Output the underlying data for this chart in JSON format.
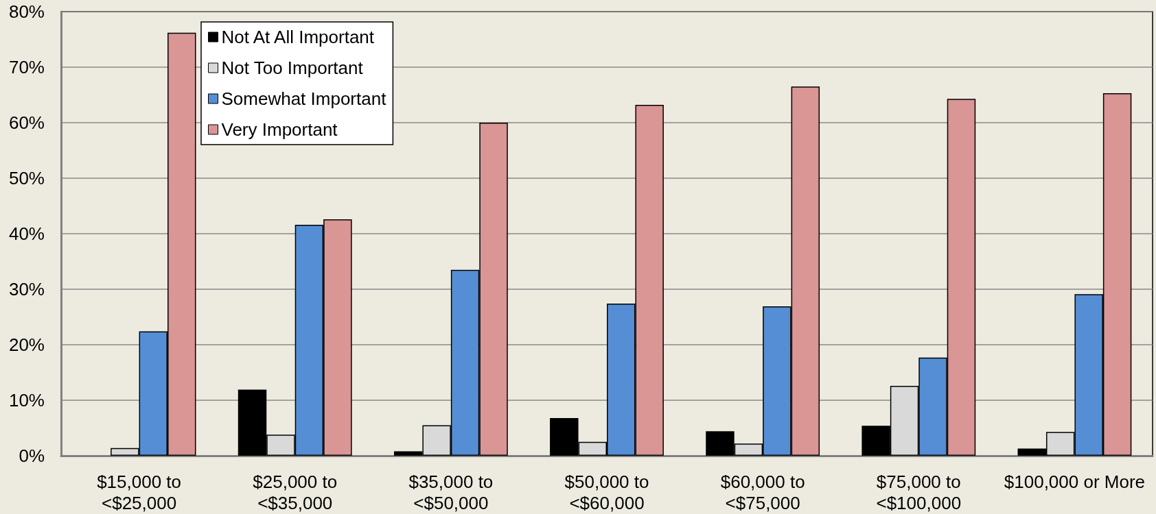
{
  "chart_data": {
    "type": "bar",
    "categories": [
      "$15,000 to <$25,000",
      "$25,000 to <$35,000",
      "$35,000 to <$50,000",
      "$50,000 to <$60,000",
      "$60,000 to <$75,000",
      "$75,000 to <$100,000",
      "$100,000 or More"
    ],
    "series": [
      {
        "name": "Not At All Important",
        "color": "#000000",
        "values": [
          null,
          11.9,
          0.8,
          6.8,
          4.4,
          5.4,
          1.3
        ]
      },
      {
        "name": "Not Too Important",
        "color": "#d9d9d9",
        "values": [
          1.4,
          3.8,
          5.5,
          2.5,
          2.2,
          12.6,
          4.3
        ]
      },
      {
        "name": "Somewhat Important",
        "color": "#558ed5",
        "values": [
          22.4,
          41.6,
          33.5,
          27.4,
          26.9,
          17.7,
          29.1
        ]
      },
      {
        "name": "Very Important",
        "color": "#d99694",
        "values": [
          76.2,
          42.6,
          60.0,
          63.2,
          66.5,
          64.3,
          65.3
        ]
      }
    ],
    "ylim": [
      0,
      80
    ],
    "yticks": [
      {
        "value": 0,
        "label": "0%"
      },
      {
        "value": 10,
        "label": "10%"
      },
      {
        "value": 20,
        "label": "20%"
      },
      {
        "value": 30,
        "label": "30%"
      },
      {
        "value": 40,
        "label": "40%"
      },
      {
        "value": 50,
        "label": "50%"
      },
      {
        "value": 60,
        "label": "60%"
      },
      {
        "value": 70,
        "label": "70%"
      },
      {
        "value": 80,
        "label": "80%"
      }
    ],
    "grid": "y",
    "legend": "top left"
  }
}
